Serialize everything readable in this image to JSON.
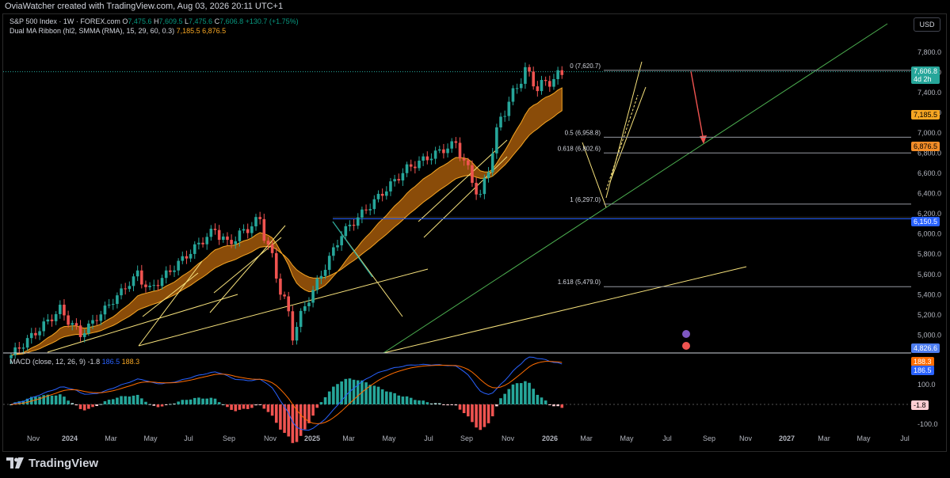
{
  "header": {
    "created_text": "OviaWatcher created with TradingView.com, Aug 03, 2026 20:11 UTC+1"
  },
  "symbol": {
    "name": "S&P 500 Index · 1W · FOREX.com",
    "o_label": "O",
    "o_val": "7,475.6",
    "h_label": "H",
    "h_val": "7,609.5",
    "l_label": "L",
    "l_val": "7,475.6",
    "c_label": "C",
    "c_val": "7,606.8",
    "change": "+130.7 (+1.75%)"
  },
  "indicator": {
    "name": "Dual MA Ribbon (hl2, SMMA (RMA), 15, 29, 60, 0.3)",
    "v1": "7,185.5",
    "v2": "6,876.5"
  },
  "macd": {
    "name": "MACD (close, 12, 26, 9)",
    "hist": "-1.8",
    "macd": "186.5",
    "signal": "188.3"
  },
  "currency_button": "USD",
  "price_axis": [
    "7,800.0",
    "7,600.0",
    "7,400.0",
    "7,200.0",
    "7,000.0",
    "6,800.0",
    "6,600.0",
    "6,400.0",
    "6,200.0",
    "6,000.0",
    "5,800.0",
    "5,600.0",
    "5,400.0",
    "5,200.0",
    "5,000.0"
  ],
  "macd_axis": [
    "100.0",
    "0.0",
    "-100.0"
  ],
  "price_tags": {
    "last": "7,606.8",
    "countdown": "4d 2h",
    "ma_fast": "7,185.5",
    "ma_slow": "6,876.5",
    "level_blue": "6,150.5",
    "bottom": "4,826.6",
    "macd_signal": "188.3",
    "macd_line": "186.5",
    "macd_hist": "-1.8"
  },
  "fib_labels": {
    "f0": "0 (7,620.7)",
    "f05": "0.5 (6,958.8)",
    "f0618": "0.618 (6,802.6)",
    "f1": "1 (6,297.0)",
    "f1618": "1.618 (5,479.0)"
  },
  "time_axis": [
    "Nov",
    "2024",
    "Mar",
    "May",
    "Jul",
    "Sep",
    "Nov",
    "2025",
    "Mar",
    "May",
    "Jul",
    "Sep",
    "Nov",
    "2026",
    "Mar",
    "May",
    "Jul",
    "Sep",
    "Nov",
    "2027",
    "Mar",
    "May",
    "Jul"
  ],
  "brand": "TradingView",
  "colors": {
    "up": "#26a69a",
    "down": "#ef5350",
    "ribbon": "#f6a623",
    "macd_line": "#2962ff",
    "signal_line": "#ff6d00",
    "trend_green": "#4caf50",
    "fib_gray": "#9598a1"
  },
  "chart_data": {
    "type": "candlestick",
    "title": "S&P 500 Index · 1W · FOREX.com",
    "y_range": [
      4826.6,
      7900
    ],
    "x_range": [
      "2023-10-30",
      "2027-08-02"
    ],
    "last_close": 7606.8,
    "fib_levels": [
      {
        "ratio": 0,
        "value": 7620.7
      },
      {
        "ratio": 0.5,
        "value": 6958.8
      },
      {
        "ratio": 0.618,
        "value": 6802.6
      },
      {
        "ratio": 1,
        "value": 6297.0
      },
      {
        "ratio": 1.618,
        "value": 5479.0
      }
    ],
    "horizontal_level": 6150.5,
    "ma_ribbon_latest": [
      7185.5,
      6876.5
    ],
    "macd_latest": {
      "macd": 186.5,
      "signal": 188.3,
      "histogram": -1.8
    }
  }
}
